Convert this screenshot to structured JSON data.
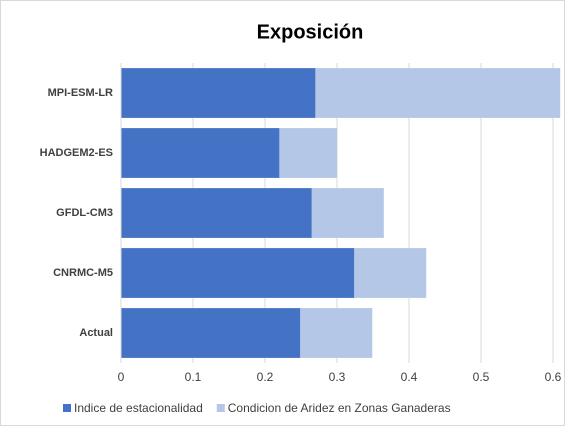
{
  "chart_data": {
    "type": "stacked-barh",
    "title": "Exposición",
    "categories": [
      "MPI-ESM-LR",
      "HADGEM2-ES",
      "GFDL-CM3",
      "CNRMC-M5",
      "Actual"
    ],
    "series": [
      {
        "name": "Indice de estacionalidad",
        "color": "#4472c4",
        "values": [
          0.27,
          0.22,
          0.265,
          0.324,
          0.249
        ]
      },
      {
        "name": "Condicion de Aridez en Zonas Ganaderas",
        "color": "#b4c7e7",
        "values": [
          0.34,
          0.08,
          0.1,
          0.1,
          0.1
        ]
      }
    ],
    "xlim": [
      0,
      0.6
    ],
    "xticks": [
      0,
      0.1,
      0.2,
      0.3,
      0.4,
      0.5,
      0.6
    ],
    "grid": true,
    "legend": "bottom"
  }
}
